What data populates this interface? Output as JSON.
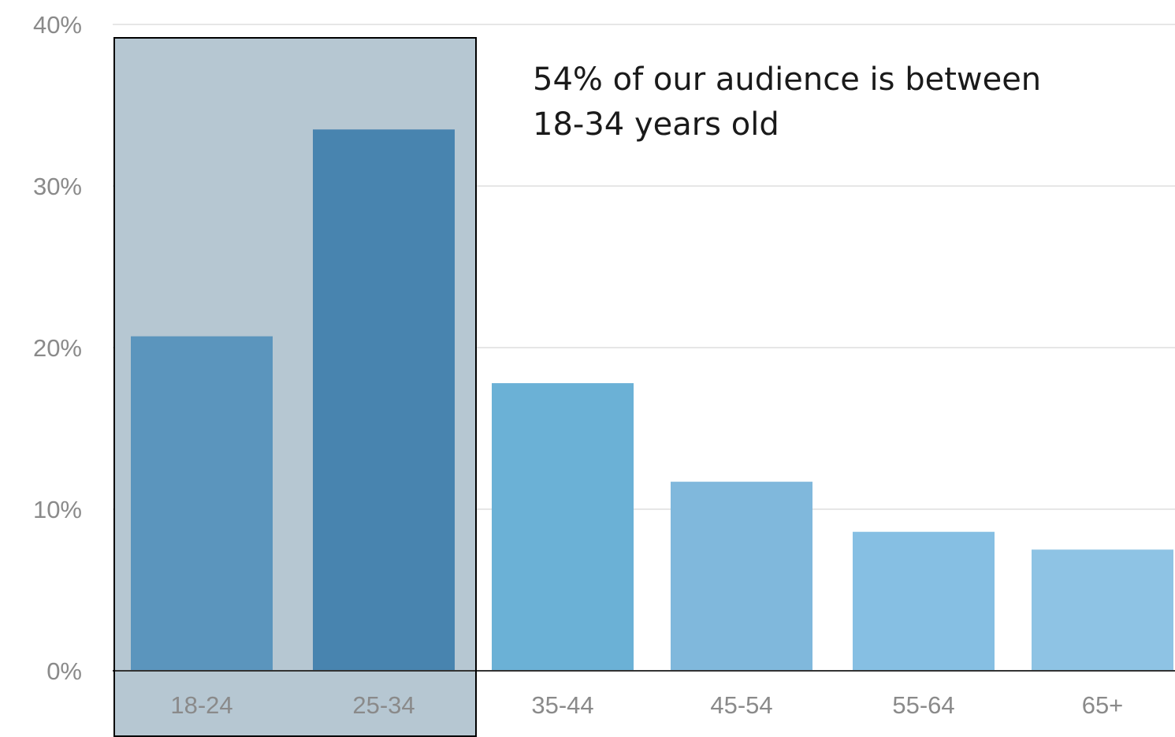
{
  "chart_data": {
    "type": "bar",
    "categories": [
      "18-24",
      "25-34",
      "35-44",
      "45-54",
      "55-64",
      "65+"
    ],
    "values": [
      20.7,
      33.5,
      17.8,
      11.7,
      8.6,
      7.5
    ],
    "bar_colors": [
      "#5b95bd",
      "#4884af",
      "#6bb1d6",
      "#80b8dc",
      "#86bfe3",
      "#8ec3e4"
    ],
    "ylim": [
      0,
      40
    ],
    "yticks": [
      "0%",
      "10%",
      "20%",
      "30%",
      "40%"
    ],
    "grid": true,
    "highlight": {
      "categories": [
        "18-24",
        "25-34"
      ],
      "fill": "#b6c7d2",
      "border": "#000000"
    },
    "annotation": {
      "line1": "54% of our audience is between",
      "line2": "18-34 years old"
    }
  }
}
